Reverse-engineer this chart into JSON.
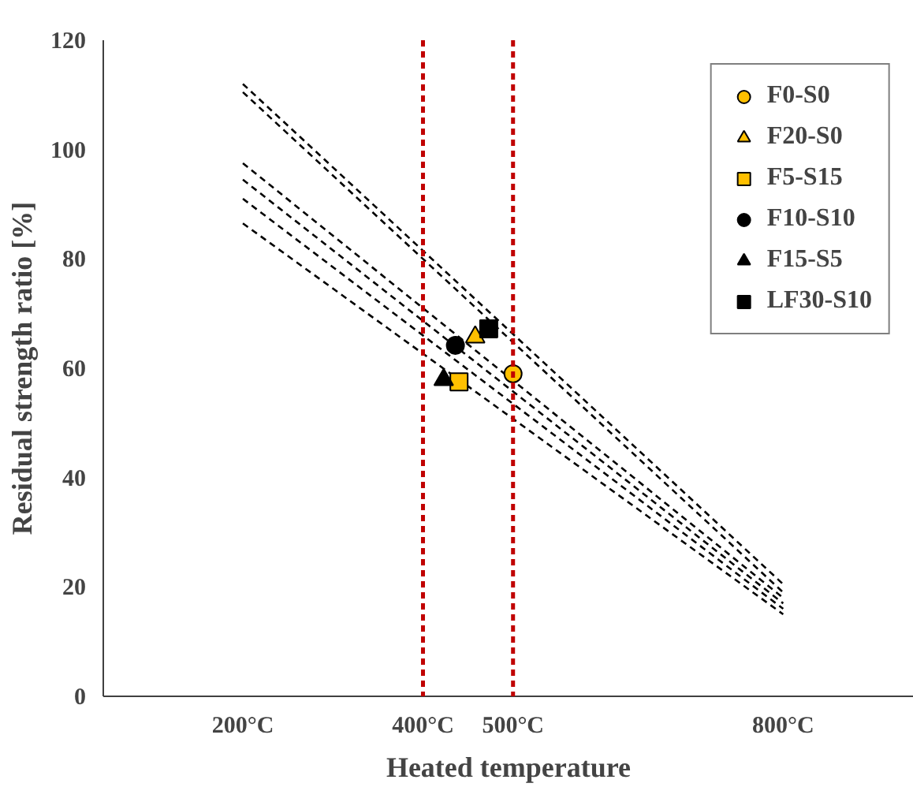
{
  "chart_data": {
    "type": "scatter",
    "xlabel": "Heated temperature",
    "ylabel": "Residual strength ratio [%]",
    "xlim": [
      45,
      945
    ],
    "ylim": [
      0,
      120
    ],
    "xticks": [
      {
        "value": 200,
        "label": "200°C"
      },
      {
        "value": 400,
        "label": "400°C"
      },
      {
        "value": 500,
        "label": "500°C"
      },
      {
        "value": 800,
        "label": "800°C"
      }
    ],
    "yticks": [
      0,
      20,
      40,
      60,
      80,
      100,
      120
    ],
    "grid": false,
    "legend": "top right",
    "ref_lines": [
      {
        "axis": "x",
        "value": 400,
        "color": "#c00000",
        "line_style": "dashed"
      },
      {
        "axis": "x",
        "value": 500,
        "color": "#c00000",
        "line_style": "dashed"
      }
    ],
    "series": [
      {
        "type": "line",
        "color": "#000000",
        "line_style": "dashed",
        "marker": "none",
        "x": [
          200,
          800
        ],
        "values": [
          112,
          20.5
        ]
      },
      {
        "type": "line",
        "color": "#000000",
        "line_style": "dashed",
        "marker": "none",
        "x": [
          200,
          800
        ],
        "values": [
          110.5,
          19
        ]
      },
      {
        "type": "line",
        "color": "#000000",
        "line_style": "dashed",
        "marker": "none",
        "x": [
          200,
          800
        ],
        "values": [
          97.5,
          18
        ]
      },
      {
        "type": "line",
        "color": "#000000",
        "line_style": "dashed",
        "marker": "none",
        "x": [
          200,
          800
        ],
        "values": [
          94.5,
          17
        ]
      },
      {
        "type": "line",
        "color": "#000000",
        "line_style": "dashed",
        "marker": "none",
        "x": [
          200,
          800
        ],
        "values": [
          91,
          16
        ]
      },
      {
        "type": "line",
        "color": "#000000",
        "line_style": "dashed",
        "marker": "none",
        "x": [
          200,
          800
        ],
        "values": [
          86.5,
          15
        ]
      },
      {
        "name": "F0-S0",
        "color": "#ffc000",
        "marker": "circle",
        "x": [
          500
        ],
        "values": [
          59
        ]
      },
      {
        "name": "F20-S0",
        "color": "#ffc000",
        "marker": "triangle",
        "x": [
          458
        ],
        "values": [
          65.7
        ]
      },
      {
        "name": "F5-S15",
        "color": "#ffc000",
        "marker": "square",
        "x": [
          440
        ],
        "values": [
          57.5
        ]
      },
      {
        "name": "F10-S10",
        "color": "#000000",
        "marker": "circle",
        "x": [
          436
        ],
        "values": [
          64.2
        ]
      },
      {
        "name": "F15-S5",
        "color": "#000000",
        "marker": "triangle",
        "x": [
          423
        ],
        "values": [
          57.9
        ]
      },
      {
        "name": "LF30-S10",
        "color": "#000000",
        "marker": "square",
        "x": [
          473
        ],
        "values": [
          67.2
        ]
      }
    ]
  }
}
